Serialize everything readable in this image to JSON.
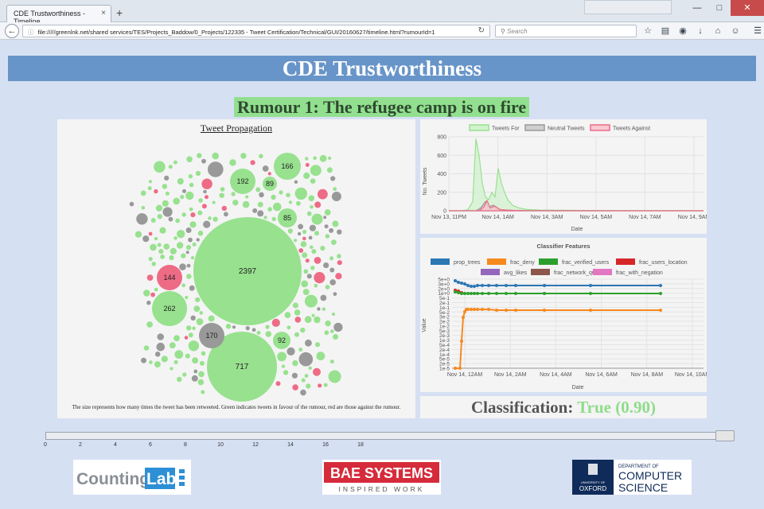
{
  "browser": {
    "tab_title": "CDE Trustworthiness - Timeline",
    "tab_close": "×",
    "new_tab": "+",
    "url": "file://///greenlnk.net/shared services/TES/Projects_Baddow/0_Projects/122335 - Tweet Certification/Technical/GUI/20160627/timeline.html?rumourId=1",
    "search_placeholder": "Search",
    "win_minimize": "—",
    "win_maximize": "□",
    "win_close": "✕"
  },
  "page": {
    "title": "CDE Trustworthiness",
    "rumour_title": "Rumour 1: The refugee camp is on fire"
  },
  "propagation": {
    "title": "Tweet Propagation",
    "caption": "The size represents how many times the tweet has been retweeted. Green indicates tweets in favour of the rumour, red are those against the rumour.",
    "colors": {
      "for": "#98e18f",
      "against": "#ee6b86",
      "neutral": "#999999"
    },
    "bubbles": [
      {
        "count": "2397",
        "stance": "for"
      },
      {
        "count": "717",
        "stance": "for"
      },
      {
        "count": "262",
        "stance": "for"
      },
      {
        "count": "192",
        "stance": "for"
      },
      {
        "count": "170",
        "stance": "neutral"
      },
      {
        "count": "166",
        "stance": "for"
      },
      {
        "count": "144",
        "stance": "against"
      },
      {
        "count": "92",
        "stance": "for"
      },
      {
        "count": "89",
        "stance": "for"
      },
      {
        "count": "85",
        "stance": "for"
      }
    ]
  },
  "tweets_chart": {
    "chart_data": {
      "type": "area",
      "series": [
        {
          "name": "Tweets For",
          "color": "#98e18f",
          "fill": "#d2f2cd"
        },
        {
          "name": "Neutral Tweets",
          "color": "#999999",
          "fill": "#cfcfcf"
        },
        {
          "name": "Tweets Against",
          "color": "#ee6b86",
          "fill": "#f8c9d2"
        }
      ],
      "ylabel": "No. Tweets",
      "xlabel": "Date",
      "ylim": [
        0,
        800
      ],
      "yticks": [
        "800",
        "600",
        "400",
        "200",
        "0"
      ],
      "xticks": [
        "Nov 13, 11PM",
        "Nov 14, 1AM",
        "Nov 14, 3AM",
        "Nov 14, 5AM",
        "Nov 14, 7AM",
        "Nov 14, 9AM"
      ]
    }
  },
  "classifier_chart": {
    "chart_data": {
      "type": "line",
      "title": "Classifier Features",
      "ylabel": "Value",
      "xlabel": "Date",
      "series": [
        {
          "name": "prop_trees",
          "color": "#2b77b4"
        },
        {
          "name": "frac_deny",
          "color": "#f7891f"
        },
        {
          "name": "frac_verified_users",
          "color": "#2ca02c"
        },
        {
          "name": "frac_users_location",
          "color": "#d62728"
        },
        {
          "name": "avg_likes",
          "color": "#9467bd"
        },
        {
          "name": "frac_network_quotes",
          "color": "#8c564b"
        },
        {
          "name": "frac_with_negation",
          "color": "#e377c2"
        }
      ],
      "yticks": [
        "5e+0",
        "3e+0",
        "2e+0",
        "1e+0",
        "5e-1",
        "2e-1",
        "1e-1",
        "5e-2",
        "3e-2",
        "2e-2",
        "1e-2",
        "5e-3",
        "2e-3",
        "1e-3",
        "5e-4",
        "2e-4",
        "1e-4",
        "5e-5",
        "2e-5",
        "1e-5"
      ],
      "xticks": [
        "Nov 14, 12AM",
        "Nov 14, 2AM",
        "Nov 14, 4AM",
        "Nov 14, 6AM",
        "Nov 14, 8AM",
        "Nov 14, 10AM"
      ]
    }
  },
  "classification": {
    "label": "Classification:",
    "value": "True (0.90)"
  },
  "timeline": {
    "ticks": [
      "0",
      "2",
      "4",
      "6",
      "8",
      "10",
      "12",
      "14",
      "16",
      "18"
    ]
  },
  "logos": {
    "counting_lab_a": "Counting",
    "counting_lab_b": "Lab",
    "bae_line1": "BAE SYSTEMS",
    "bae_line2": "INSPIRED WORK",
    "oxford_univ": "UNIVERSITY OF",
    "oxford_name": "OXFORD",
    "oxford_dept1": "DEPARTMENT OF",
    "oxford_dept2": "COMPUTER",
    "oxford_dept3": "SCIENCE"
  }
}
